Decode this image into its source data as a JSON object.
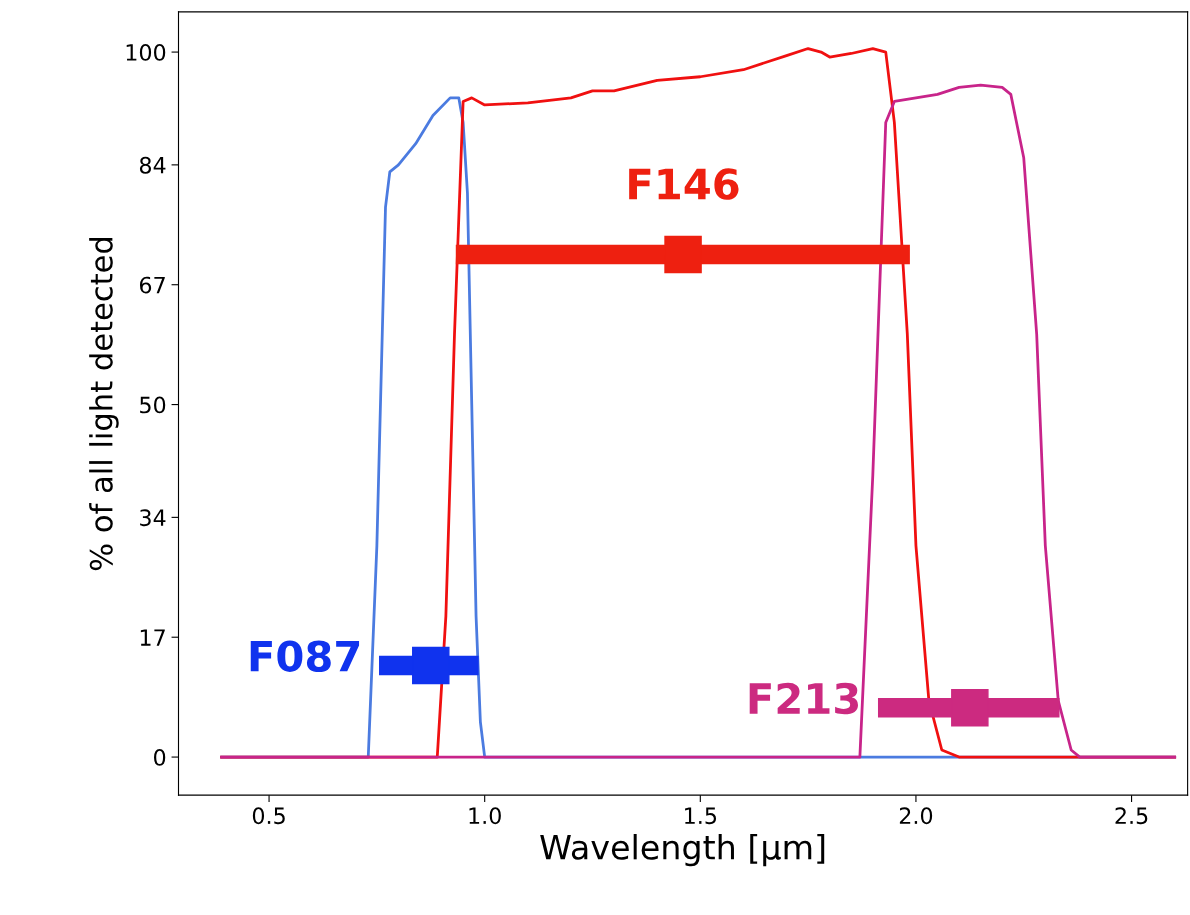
{
  "chart_data": {
    "type": "line",
    "xlabel": "Wavelength [μm]",
    "ylabel": "% of all light detected",
    "xlim": [
      0.29,
      2.63
    ],
    "xticks": [
      {
        "value": 0.5,
        "label": "0.5"
      },
      {
        "value": 1.0,
        "label": "1.0"
      },
      {
        "value": 1.5,
        "label": "1.5"
      },
      {
        "value": 2.0,
        "label": "2.0"
      },
      {
        "value": 2.5,
        "label": "2.5"
      }
    ],
    "ylim": [
      -5.4,
      105.7
    ],
    "yticks": [
      0,
      17,
      34,
      50,
      67,
      84,
      100
    ],
    "grid": false,
    "legend": false,
    "marker": "none",
    "line_style": "solid",
    "series": [
      {
        "color": "#4b7be0",
        "x": [
          0.39,
          0.73,
          0.75,
          0.77,
          0.78,
          0.8,
          0.84,
          0.88,
          0.92,
          0.94,
          0.95,
          0.96,
          0.97,
          0.98,
          0.99,
          1.0,
          1.02,
          2.6
        ],
        "values": [
          0,
          0,
          30,
          78,
          83,
          84,
          87,
          91,
          93.5,
          93.5,
          90,
          80,
          50,
          20,
          5,
          0,
          0,
          0
        ]
      },
      {
        "color": "#f01010",
        "x": [
          0.39,
          0.89,
          0.91,
          0.93,
          0.95,
          0.97,
          1.0,
          1.1,
          1.2,
          1.25,
          1.3,
          1.4,
          1.5,
          1.6,
          1.7,
          1.75,
          1.78,
          1.8,
          1.85,
          1.9,
          1.93,
          1.95,
          1.98,
          2.0,
          2.03,
          2.06,
          2.1,
          2.6
        ],
        "values": [
          0,
          0,
          20,
          60,
          93,
          93.5,
          92.5,
          92.8,
          93.5,
          94.5,
          94.5,
          96,
          96.5,
          97.5,
          99.5,
          100.5,
          100,
          99.3,
          99.8,
          100.5,
          100,
          90,
          60,
          30,
          8,
          1,
          0,
          0
        ]
      },
      {
        "color": "#c8248a",
        "x": [
          0.39,
          1.87,
          1.9,
          1.93,
          1.95,
          2.0,
          2.05,
          2.1,
          2.15,
          2.2,
          2.22,
          2.25,
          2.28,
          2.3,
          2.33,
          2.36,
          2.38,
          2.6
        ],
        "values": [
          0,
          0,
          40,
          90,
          93,
          93.5,
          94,
          95,
          95.3,
          95,
          94,
          85,
          60,
          30,
          8,
          1,
          0,
          0
        ]
      },
      {
        "type": "scatter",
        "marker": "square",
        "name": "F087",
        "color": "#1033ee",
        "x": [
          0.875
        ],
        "values": [
          13
        ],
        "xerrors": [
          [
            0.755,
            0.986
          ]
        ]
      },
      {
        "type": "scatter",
        "marker": "square",
        "name": "F146",
        "color": "#ee2010",
        "x": [
          1.46
        ],
        "values": [
          71.3
        ],
        "xerrors": [
          [
            0.933,
            1.986
          ]
        ]
      },
      {
        "type": "scatter",
        "marker": "square",
        "name": "F213",
        "color": "#cc2a80",
        "x": [
          2.125
        ],
        "values": [
          7
        ],
        "xerrors": [
          [
            1.912,
            2.333
          ]
        ]
      }
    ]
  }
}
